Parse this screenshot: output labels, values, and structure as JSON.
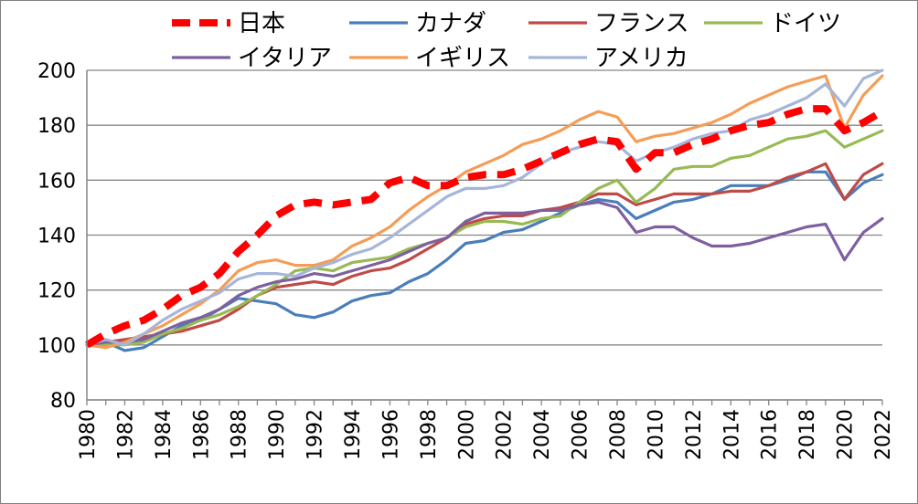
{
  "chart_data": {
    "type": "line",
    "title": "",
    "xlabel": "",
    "ylabel": "",
    "ylim": [
      80,
      200
    ],
    "yticks": [
      80,
      100,
      120,
      140,
      160,
      180,
      200
    ],
    "xlim": [
      1980,
      2022
    ],
    "xticks": [
      1980,
      1982,
      1984,
      1986,
      1988,
      1990,
      1992,
      1994,
      1996,
      1998,
      2000,
      2002,
      2004,
      2006,
      2008,
      2010,
      2012,
      2014,
      2016,
      2018,
      2020,
      2022
    ],
    "grid": "horizontal",
    "legend_position": "top",
    "x": [
      1980,
      1981,
      1982,
      1983,
      1984,
      1985,
      1986,
      1987,
      1988,
      1989,
      1990,
      1991,
      1992,
      1993,
      1994,
      1995,
      1996,
      1997,
      1998,
      1999,
      2000,
      2001,
      2002,
      2003,
      2004,
      2005,
      2006,
      2007,
      2008,
      2009,
      2010,
      2011,
      2012,
      2013,
      2014,
      2015,
      2016,
      2017,
      2018,
      2019,
      2020,
      2021,
      2022
    ],
    "series": [
      {
        "name": "日本",
        "color": "#ff0000",
        "dashed": true,
        "values": [
          100,
          104,
          107,
          109,
          113,
          118,
          121,
          126,
          134,
          140,
          147,
          151,
          152,
          151,
          152,
          153,
          159,
          161,
          158,
          158,
          161,
          162,
          162,
          164,
          167,
          170,
          173,
          175,
          174,
          164,
          170,
          170,
          173,
          175,
          178,
          180,
          181,
          184,
          186,
          186,
          178,
          181,
          185
        ]
      },
      {
        "name": "カナダ",
        "color": "#4a7ebb",
        "dashed": false,
        "values": [
          100,
          101,
          98,
          99,
          103,
          107,
          109,
          113,
          117,
          116,
          115,
          111,
          110,
          112,
          116,
          118,
          119,
          123,
          126,
          131,
          137,
          138,
          141,
          142,
          145,
          148,
          151,
          153,
          152,
          146,
          149,
          152,
          153,
          155,
          158,
          158,
          158,
          160,
          163,
          163,
          153,
          159,
          162
        ]
      },
      {
        "name": "フランス",
        "color": "#be4b48",
        "dashed": false,
        "values": [
          100,
          101,
          102,
          103,
          104,
          105,
          107,
          109,
          113,
          118,
          121,
          122,
          123,
          122,
          125,
          127,
          128,
          131,
          135,
          139,
          144,
          146,
          147,
          147,
          149,
          150,
          152,
          155,
          155,
          151,
          153,
          155,
          155,
          155,
          156,
          156,
          158,
          161,
          163,
          166,
          153,
          162,
          166
        ]
      },
      {
        "name": "ドイツ",
        "color": "#98b954",
        "dashed": false,
        "values": [
          100,
          100,
          100,
          101,
          104,
          106,
          109,
          111,
          114,
          118,
          122,
          127,
          128,
          127,
          130,
          131,
          132,
          135,
          137,
          139,
          143,
          145,
          145,
          144,
          146,
          147,
          152,
          157,
          160,
          152,
          157,
          164,
          165,
          165,
          168,
          169,
          172,
          175,
          176,
          178,
          172,
          175,
          178
        ]
      },
      {
        "name": "イタリア",
        "color": "#7d60a0",
        "dashed": false,
        "values": [
          100,
          101,
          101,
          102,
          105,
          108,
          110,
          113,
          118,
          121,
          123,
          124,
          126,
          125,
          127,
          129,
          131,
          134,
          137,
          139,
          145,
          148,
          148,
          148,
          149,
          149,
          151,
          152,
          150,
          141,
          143,
          143,
          139,
          136,
          136,
          137,
          139,
          141,
          143,
          144,
          131,
          141,
          146
        ]
      },
      {
        "name": "イギリス",
        "color": "#f59d56",
        "dashed": false,
        "values": [
          100,
          99,
          101,
          104,
          107,
          111,
          115,
          120,
          127,
          130,
          131,
          129,
          129,
          131,
          136,
          139,
          143,
          149,
          154,
          158,
          163,
          166,
          169,
          173,
          175,
          178,
          182,
          185,
          183,
          174,
          176,
          177,
          179,
          181,
          184,
          188,
          191,
          194,
          196,
          198,
          179,
          191,
          198
        ]
      },
      {
        "name": "アメリカ",
        "color": "#a5b6d9",
        "dashed": false,
        "values": [
          100,
          102,
          100,
          104,
          109,
          113,
          116,
          119,
          124,
          126,
          126,
          125,
          128,
          130,
          133,
          135,
          139,
          144,
          149,
          154,
          157,
          157,
          158,
          161,
          166,
          170,
          172,
          174,
          173,
          167,
          170,
          172,
          175,
          177,
          178,
          182,
          184,
          187,
          190,
          195,
          187,
          197,
          200
        ]
      }
    ]
  }
}
